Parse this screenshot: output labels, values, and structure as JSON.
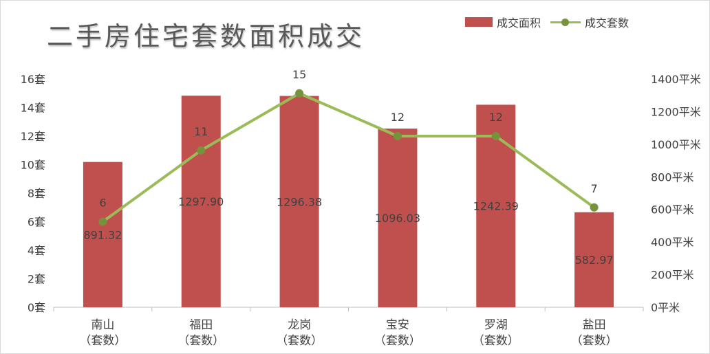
{
  "chart_data": {
    "type": "bar",
    "title": "二手房住宅套数面积成交",
    "categories": [
      "南山\n（套数）",
      "福田\n（套数）",
      "龙岗\n（套数）",
      "宝安\n（套数）",
      "罗湖\n（套数）",
      "盐田\n（套数）"
    ],
    "series": [
      {
        "name": "成交面积",
        "type": "bar",
        "axis": "right",
        "values": [
          891.32,
          1297.9,
          1296.38,
          1096.03,
          1242.39,
          582.97
        ],
        "labels": [
          "891.32",
          "1297.90",
          "1296.38",
          "1096.03",
          "1242.39",
          "582.97"
        ],
        "color": "#c0504d"
      },
      {
        "name": "成交套数",
        "type": "line",
        "axis": "left",
        "values": [
          6,
          11,
          15,
          12,
          12,
          7
        ],
        "labels": [
          "6",
          "11",
          "15",
          "12",
          "12",
          "7"
        ],
        "color": "#9bbb59",
        "marker_color": "#76923c"
      }
    ],
    "y_left": {
      "lim": [
        0,
        16
      ],
      "ticks": [
        0,
        2,
        4,
        6,
        8,
        10,
        12,
        14,
        16
      ],
      "tick_labels": [
        "0套",
        "2套",
        "4套",
        "6套",
        "8套",
        "10套",
        "12套",
        "14套",
        "16套"
      ]
    },
    "y_right": {
      "lim": [
        0,
        1400
      ],
      "ticks": [
        0,
        200,
        400,
        600,
        800,
        1000,
        1200,
        1400
      ],
      "tick_labels": [
        "0平米",
        "200平米",
        "400平米",
        "600平米",
        "800平米",
        "1000平米",
        "1200平米",
        "1400平米"
      ]
    },
    "grid": false,
    "legend": "top-right"
  }
}
